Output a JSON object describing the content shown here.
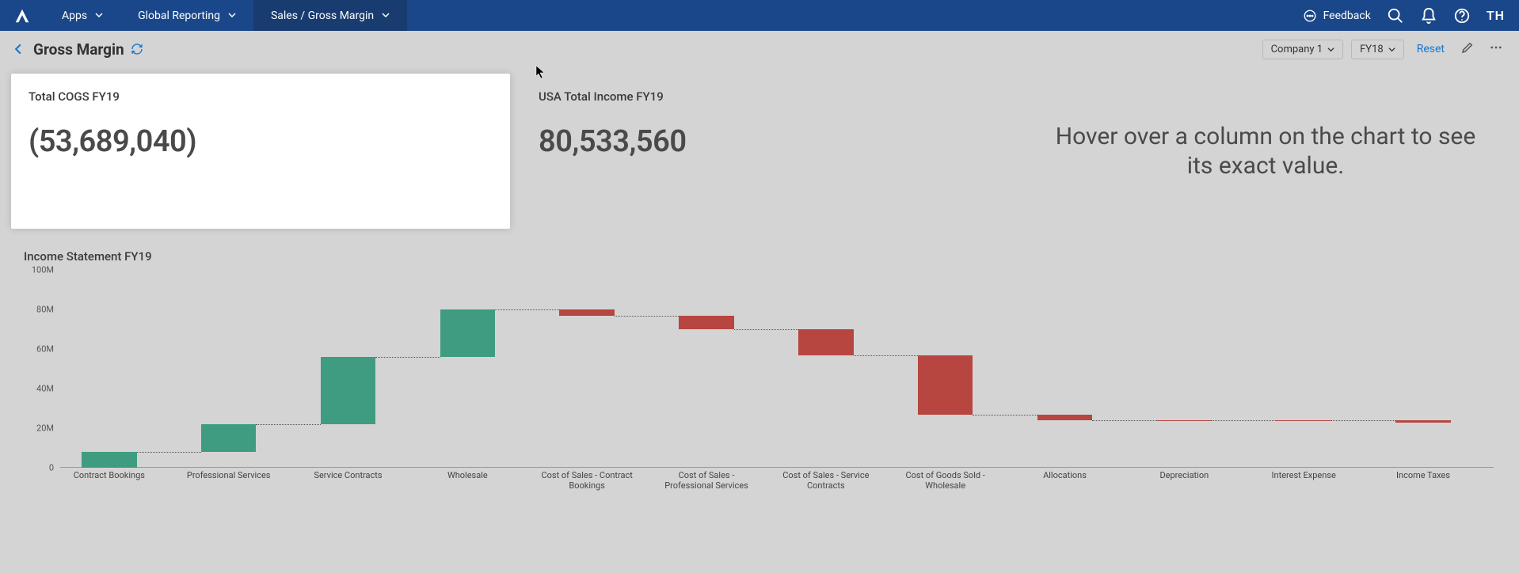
{
  "nav": {
    "apps": "Apps",
    "breadcrumb1": "Global Reporting",
    "breadcrumb2": "Sales / Gross Margin",
    "feedback": "Feedback",
    "user_initials": "TH"
  },
  "header": {
    "title": "Gross Margin",
    "company_selector": "Company 1",
    "year_selector": "FY18",
    "reset": "Reset"
  },
  "cards": {
    "cogs": {
      "title": "Total COGS FY19",
      "value": "(53,689,040)"
    },
    "income": {
      "title": "USA Total Income FY19",
      "value": "80,533,560"
    },
    "hint": "Hover over a column on the chart to see its exact value."
  },
  "chart": {
    "title": "Income Statement FY19",
    "ymax": 100,
    "unit_suffix": "M",
    "yticks": [
      0,
      20,
      40,
      60,
      80,
      100
    ],
    "positive_color": "#3f9c81",
    "negative_color": "#b74540",
    "grid_color": "#d4d4d4",
    "connector_color": "#555555",
    "type": "waterfall",
    "bars": [
      {
        "label": "Contract Bookings",
        "start": 0,
        "end": 8,
        "dir": "pos"
      },
      {
        "label": "Professional Services",
        "start": 8,
        "end": 22,
        "dir": "pos"
      },
      {
        "label": "Service Contracts",
        "start": 22,
        "end": 56,
        "dir": "pos"
      },
      {
        "label": "Wholesale",
        "start": 56,
        "end": 80,
        "dir": "pos"
      },
      {
        "label": "Cost of Sales - Contract Bookings",
        "start": 80,
        "end": 77,
        "dir": "neg"
      },
      {
        "label": "Cost of Sales - Professional Services",
        "start": 77,
        "end": 70,
        "dir": "neg"
      },
      {
        "label": "Cost of Sales - Service Contracts",
        "start": 70,
        "end": 57,
        "dir": "neg"
      },
      {
        "label": "Cost of Goods Sold - Wholesale",
        "start": 57,
        "end": 27,
        "dir": "neg"
      },
      {
        "label": "Allocations",
        "start": 27,
        "end": 24,
        "dir": "neg"
      },
      {
        "label": "Depreciation",
        "start": 24,
        "end": 24,
        "dir": "neg"
      },
      {
        "label": "Interest Expense",
        "start": 24,
        "end": 24,
        "dir": "neg"
      },
      {
        "label": "Income Taxes",
        "start": 24,
        "end": 23,
        "dir": "neg"
      }
    ]
  }
}
